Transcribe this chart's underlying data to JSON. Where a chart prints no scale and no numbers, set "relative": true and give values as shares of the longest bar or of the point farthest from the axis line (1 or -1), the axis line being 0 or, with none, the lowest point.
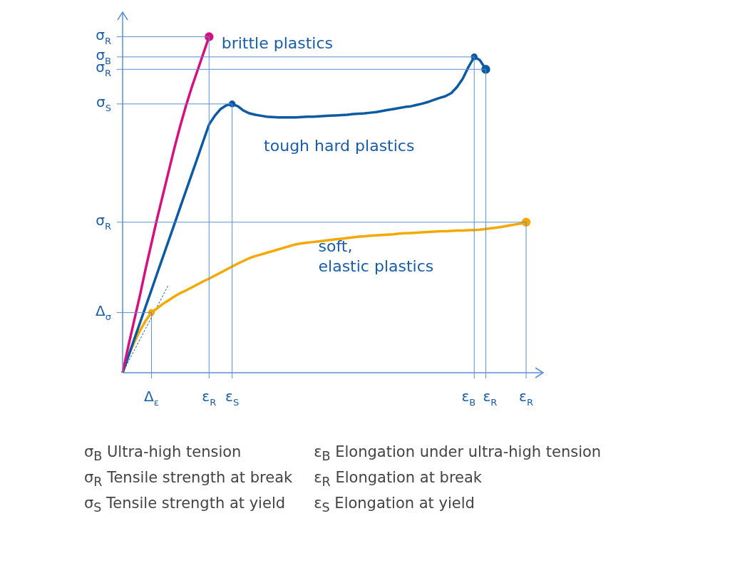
{
  "chart_data": {
    "type": "line",
    "relative": true,
    "categories": [
      null,
      null,
      null,
      null,
      null,
      "Δ$_{ε}$",
      null,
      null,
      null,
      null,
      null,
      null,
      null,
      null,
      null,
      "ε$_{R}$",
      null,
      null,
      null,
      "ε$_{S}$",
      null,
      null,
      null,
      null,
      null,
      null,
      null,
      null,
      null,
      null,
      null,
      null,
      null,
      null,
      null,
      null,
      null,
      null,
      null,
      null,
      null,
      null,
      null,
      null,
      null,
      null,
      null,
      null,
      null,
      null,
      null,
      null,
      null,
      null,
      null,
      null,
      null,
      null,
      null,
      null,
      null,
      "ε$_{B}$",
      null,
      "ε$_{R}$",
      null,
      null,
      null,
      null,
      null,
      null,
      "ε$_{R}$"
    ],
    "ref_lines": [
      {
        "axis": "x",
        "value": "Δ$_{ε}$"
      },
      {
        "axis": "y",
        "value": 0.179,
        "label": "Δ$_{σ}$"
      },
      {
        "axis": "y",
        "value": 0.448,
        "label": "σ$_{R}$"
      },
      {
        "axis": "y",
        "value": 0.8,
        "label": "σ$_{S}$"
      },
      {
        "axis": "y",
        "value": 0.903,
        "label": "σ$_{R}$"
      },
      {
        "axis": "y",
        "value": 0.94,
        "label": "σ$_{B}$"
      },
      {
        "axis": "y",
        "value": 1.0,
        "label": "σ$_{R}$"
      }
    ],
    "series": [
      {
        "name": "brittle plastics",
        "color": "#d6117f",
        "values": [
          0,
          0.08,
          0.155,
          0.23,
          0.31,
          0.385,
          0.46,
          0.53,
          0.6,
          0.67,
          0.735,
          0.795,
          0.85,
          0.9,
          0.95,
          1.0,
          null,
          null,
          null,
          null,
          null,
          null,
          null,
          null,
          null,
          null,
          null,
          null,
          null,
          null,
          null,
          null,
          null,
          null,
          null,
          null,
          null,
          null,
          null,
          null,
          null,
          null,
          null,
          null,
          null,
          null,
          null,
          null,
          null,
          null,
          null,
          null,
          null,
          null,
          null,
          null,
          null,
          null,
          null,
          null,
          null,
          null,
          null,
          null,
          null,
          null,
          null,
          null,
          null,
          null,
          null
        ]
      },
      {
        "name": "tough hard plastics",
        "color": "#0b5aa2",
        "values": [
          0,
          0.049,
          0.099,
          0.148,
          0.197,
          0.246,
          0.296,
          0.345,
          0.394,
          0.443,
          0.493,
          0.542,
          0.591,
          0.64,
          0.69,
          0.739,
          0.765,
          0.785,
          0.796,
          0.8,
          0.793,
          0.78,
          0.772,
          0.768,
          0.765,
          0.762,
          0.761,
          0.76,
          0.76,
          0.76,
          0.76,
          0.761,
          0.762,
          0.762,
          0.763,
          0.764,
          0.765,
          0.766,
          0.767,
          0.768,
          0.77,
          0.771,
          0.772,
          0.774,
          0.776,
          0.779,
          0.782,
          0.785,
          0.788,
          0.791,
          0.793,
          0.797,
          0.801,
          0.806,
          0.812,
          0.818,
          0.823,
          0.832,
          0.85,
          0.875,
          0.91,
          0.94,
          0.93,
          0.903,
          null,
          null,
          null,
          null,
          null,
          null,
          null
        ]
      },
      {
        "name": "soft,\nelastic plastics",
        "color": "#f5a800",
        "values": [
          0,
          0.05,
          0.09,
          0.125,
          0.155,
          0.179,
          0.192,
          0.205,
          0.216,
          0.227,
          0.237,
          0.245,
          0.254,
          0.263,
          0.272,
          0.28,
          0.289,
          0.298,
          0.307,
          0.316,
          0.325,
          0.333,
          0.341,
          0.347,
          0.352,
          0.357,
          0.362,
          0.367,
          0.372,
          0.377,
          0.382,
          0.385,
          0.387,
          0.389,
          0.391,
          0.393,
          0.395,
          0.397,
          0.399,
          0.401,
          0.403,
          0.405,
          0.406,
          0.408,
          0.409,
          0.41,
          0.411,
          0.412,
          0.414,
          0.415,
          0.416,
          0.417,
          0.418,
          0.419,
          0.42,
          0.421,
          0.421,
          0.422,
          0.423,
          0.423,
          0.424,
          0.425,
          0.426,
          0.428,
          0.43,
          0.432,
          0.435,
          0.438,
          0.441,
          0.444,
          0.448
        ]
      },
      {
        "color": "#0b5aa2",
        "line_style": "dotted",
        "values": [
          0,
          0.033,
          0.066,
          0.099,
          0.132,
          0.164,
          0.197,
          0.23,
          0.263,
          null,
          null,
          null,
          null,
          null,
          null,
          null,
          null,
          null,
          null,
          null,
          null,
          null,
          null,
          null,
          null,
          null,
          null,
          null,
          null,
          null,
          null,
          null,
          null,
          null,
          null,
          null,
          null,
          null,
          null,
          null,
          null,
          null,
          null,
          null,
          null,
          null,
          null,
          null,
          null,
          null,
          null,
          null,
          null,
          null,
          null,
          null,
          null,
          null,
          null,
          null,
          null,
          null,
          null,
          null,
          null,
          null,
          null,
          null,
          null,
          null,
          null
        ]
      }
    ],
    "annotations": [
      "σ$_{B}$ Ultra-high tension",
      "σ$_{R}$ Tensile strength at break",
      "σ$_{S}$ Tensile strength at yield",
      "ε$_{B}$ Elongation under ultra-high tension",
      "ε$_{R}$ Elongation at break",
      "ε$_{S}$ Elongation at yield"
    ]
  }
}
